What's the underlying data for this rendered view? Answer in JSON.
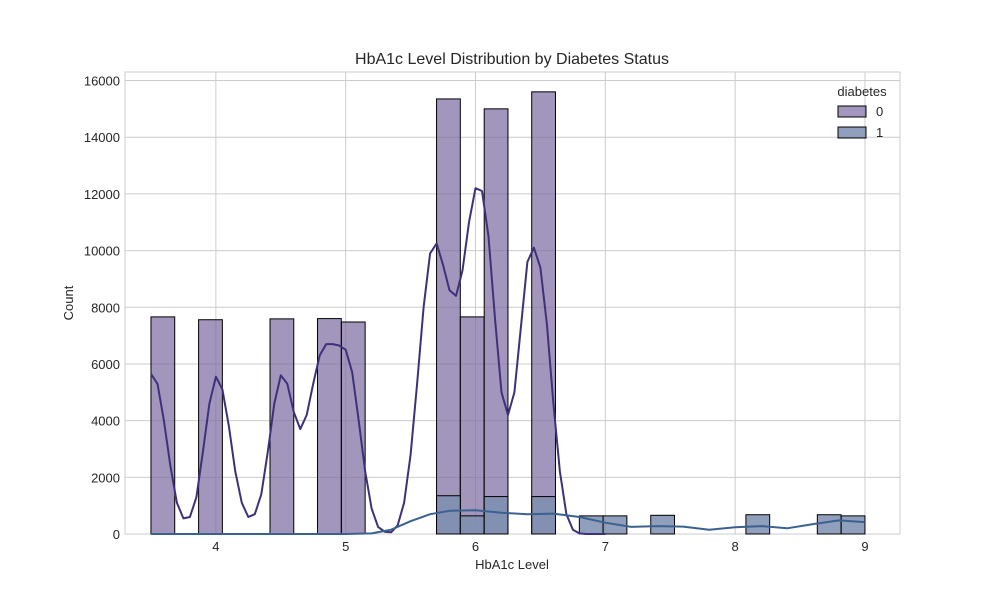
{
  "chart_data": {
    "type": "bar",
    "title": "HbA1c Level Distribution by Diabetes Status",
    "xlabel": "HbA1c Level",
    "ylabel": "Count",
    "xlim": [
      3.3,
      9.27
    ],
    "ylim": [
      0,
      16300
    ],
    "xticks": [
      4,
      5,
      6,
      7,
      8,
      9
    ],
    "yticks": [
      0,
      2000,
      4000,
      6000,
      8000,
      10000,
      12000,
      14000,
      16000
    ],
    "grid": true,
    "legend": {
      "title": "diabetes",
      "placement": "top-right",
      "entries": [
        "0",
        "1"
      ]
    },
    "bin_width": 0.183,
    "series": [
      {
        "name": "0",
        "color": "#7a6aa0",
        "kde_color": "#3f3179",
        "bars": [
          {
            "x0": 3.5,
            "count": 7660
          },
          {
            "x0": 3.867,
            "count": 7560
          },
          {
            "x0": 4.417,
            "count": 7590
          },
          {
            "x0": 4.783,
            "count": 7600
          },
          {
            "x0": 4.967,
            "count": 7480
          },
          {
            "x0": 5.7,
            "count": 15350
          },
          {
            "x0": 5.883,
            "count": 7660
          },
          {
            "x0": 6.067,
            "count": 15000
          },
          {
            "x0": 6.433,
            "count": 15600
          }
        ],
        "kde": [
          [
            3.5,
            5650
          ],
          [
            3.55,
            5300
          ],
          [
            3.6,
            4000
          ],
          [
            3.65,
            2400
          ],
          [
            3.7,
            1100
          ],
          [
            3.75,
            550
          ],
          [
            3.8,
            600
          ],
          [
            3.85,
            1300
          ],
          [
            3.9,
            2900
          ],
          [
            3.95,
            4600
          ],
          [
            4.0,
            5550
          ],
          [
            4.05,
            5100
          ],
          [
            4.1,
            3800
          ],
          [
            4.15,
            2200
          ],
          [
            4.2,
            1100
          ],
          [
            4.25,
            600
          ],
          [
            4.3,
            700
          ],
          [
            4.35,
            1400
          ],
          [
            4.4,
            2900
          ],
          [
            4.45,
            4600
          ],
          [
            4.5,
            5600
          ],
          [
            4.55,
            5300
          ],
          [
            4.6,
            4300
          ],
          [
            4.65,
            3700
          ],
          [
            4.7,
            4200
          ],
          [
            4.75,
            5300
          ],
          [
            4.8,
            6300
          ],
          [
            4.85,
            6700
          ],
          [
            4.9,
            6700
          ],
          [
            4.95,
            6650
          ],
          [
            5.0,
            6500
          ],
          [
            5.05,
            5700
          ],
          [
            5.1,
            4000
          ],
          [
            5.15,
            2200
          ],
          [
            5.2,
            900
          ],
          [
            5.25,
            250
          ],
          [
            5.3,
            80
          ],
          [
            5.35,
            60
          ],
          [
            5.4,
            300
          ],
          [
            5.45,
            1100
          ],
          [
            5.5,
            2800
          ],
          [
            5.55,
            5300
          ],
          [
            5.6,
            8000
          ],
          [
            5.65,
            9900
          ],
          [
            5.7,
            10250
          ],
          [
            5.75,
            9500
          ],
          [
            5.8,
            8600
          ],
          [
            5.85,
            8400
          ],
          [
            5.9,
            9300
          ],
          [
            5.95,
            11000
          ],
          [
            6.0,
            12200
          ],
          [
            6.05,
            12100
          ],
          [
            6.1,
            10500
          ],
          [
            6.15,
            7600
          ],
          [
            6.2,
            5000
          ],
          [
            6.25,
            4200
          ],
          [
            6.3,
            5000
          ],
          [
            6.35,
            7300
          ],
          [
            6.4,
            9600
          ],
          [
            6.45,
            10100
          ],
          [
            6.5,
            9400
          ],
          [
            6.55,
            7400
          ],
          [
            6.6,
            4600
          ],
          [
            6.65,
            2200
          ],
          [
            6.7,
            700
          ],
          [
            6.75,
            150
          ],
          [
            6.8,
            20
          ],
          [
            6.85,
            0
          ],
          [
            7.0,
            0
          ]
        ]
      },
      {
        "name": "1",
        "color": "#7d8fb0",
        "kde_color": "#3a6190",
        "bars": [
          {
            "x0": 5.7,
            "count": 1350
          },
          {
            "x0": 5.883,
            "count": 640
          },
          {
            "x0": 6.067,
            "count": 1320
          },
          {
            "x0": 6.433,
            "count": 1320
          },
          {
            "x0": 6.8,
            "count": 640
          },
          {
            "x0": 6.983,
            "count": 640
          },
          {
            "x0": 7.35,
            "count": 660
          },
          {
            "x0": 8.083,
            "count": 680
          },
          {
            "x0": 8.633,
            "count": 680
          },
          {
            "x0": 8.817,
            "count": 640
          }
        ],
        "kde": [
          [
            3.5,
            0
          ],
          [
            5.0,
            0
          ],
          [
            5.2,
            20
          ],
          [
            5.35,
            150
          ],
          [
            5.5,
            450
          ],
          [
            5.65,
            700
          ],
          [
            5.8,
            820
          ],
          [
            6.0,
            840
          ],
          [
            6.2,
            750
          ],
          [
            6.4,
            700
          ],
          [
            6.6,
            720
          ],
          [
            6.8,
            600
          ],
          [
            7.0,
            400
          ],
          [
            7.2,
            250
          ],
          [
            7.4,
            280
          ],
          [
            7.6,
            260
          ],
          [
            7.8,
            150
          ],
          [
            8.0,
            240
          ],
          [
            8.2,
            280
          ],
          [
            8.4,
            200
          ],
          [
            8.6,
            350
          ],
          [
            8.8,
            480
          ],
          [
            9.0,
            420
          ]
        ]
      }
    ]
  }
}
